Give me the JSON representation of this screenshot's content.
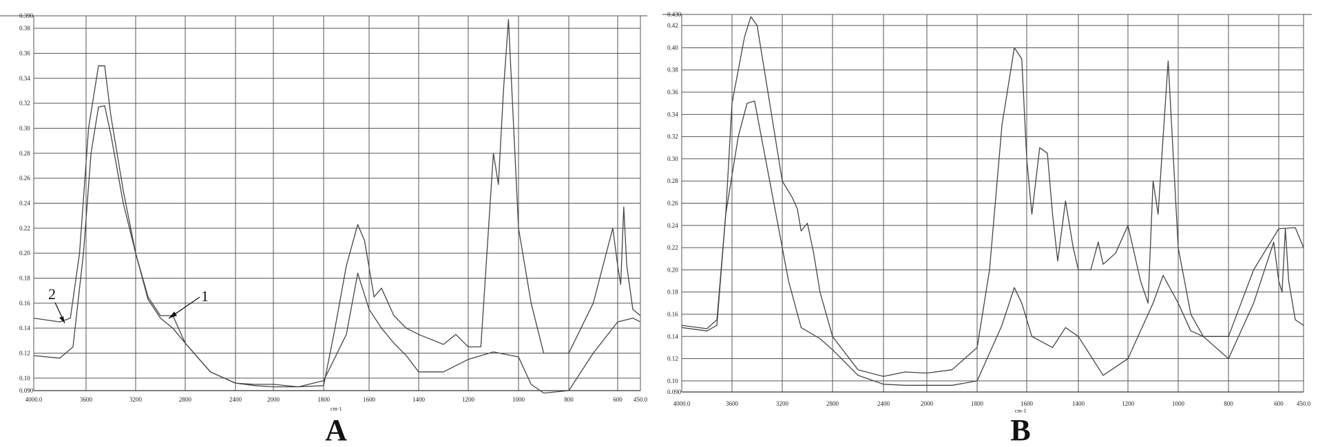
{
  "chart_data": [
    {
      "type": "line",
      "panel_label": "A",
      "x_unit": "cm-1",
      "xlim": [
        4000,
        450
      ],
      "ylim": [
        0.09,
        0.39
      ],
      "grid": true,
      "x_ticks": [
        "4000.0",
        "3600",
        "3200",
        "2800",
        "2400",
        "2000",
        "1800",
        "1600",
        "1400",
        "1200",
        "1000",
        "800",
        "600",
        "450.0"
      ],
      "y_ticks": [
        "0.390",
        "0.38",
        "0.36",
        "0.34",
        "0.32",
        "0.30",
        "0.28",
        "0.26",
        "0.24",
        "0.22",
        "0.20",
        "0.18",
        "0.16",
        "0.14",
        "0.12",
        "0.10",
        "0.090"
      ],
      "annotations": [
        "1",
        "2"
      ],
      "series": [
        {
          "label": "1",
          "points": [
            [
              4000,
              0.118
            ],
            [
              3800,
              0.116
            ],
            [
              3700,
              0.125
            ],
            [
              3620,
              0.2
            ],
            [
              3560,
              0.28
            ],
            [
              3500,
              0.317
            ],
            [
              3450,
              0.318
            ],
            [
              3400,
              0.295
            ],
            [
              3300,
              0.24
            ],
            [
              3200,
              0.2
            ],
            [
              3100,
              0.165
            ],
            [
              3000,
              0.15
            ],
            [
              2900,
              0.15
            ],
            [
              2800,
              0.128
            ],
            [
              2600,
              0.105
            ],
            [
              2400,
              0.096
            ],
            [
              2200,
              0.094
            ],
            [
              2000,
              0.093
            ],
            [
              1900,
              0.093
            ],
            [
              1800,
              0.098
            ],
            [
              1700,
              0.135
            ],
            [
              1650,
              0.184
            ],
            [
              1600,
              0.155
            ],
            [
              1550,
              0.14
            ],
            [
              1500,
              0.128
            ],
            [
              1450,
              0.118
            ],
            [
              1400,
              0.105
            ],
            [
              1300,
              0.105
            ],
            [
              1200,
              0.115
            ],
            [
              1100,
              0.121
            ],
            [
              1000,
              0.117
            ],
            [
              950,
              0.095
            ],
            [
              900,
              0.088
            ],
            [
              800,
              0.09
            ],
            [
              700,
              0.12
            ],
            [
              600,
              0.145
            ],
            [
              500,
              0.148
            ],
            [
              450,
              0.145
            ]
          ]
        },
        {
          "label": "2",
          "points": [
            [
              4000,
              0.148
            ],
            [
              3800,
              0.145
            ],
            [
              3720,
              0.148
            ],
            [
              3650,
              0.2
            ],
            [
              3580,
              0.3
            ],
            [
              3500,
              0.35
            ],
            [
              3450,
              0.35
            ],
            [
              3400,
              0.31
            ],
            [
              3300,
              0.25
            ],
            [
              3200,
              0.2
            ],
            [
              3100,
              0.163
            ],
            [
              3000,
              0.148
            ],
            [
              2900,
              0.14
            ],
            [
              2800,
              0.128
            ],
            [
              2600,
              0.105
            ],
            [
              2400,
              0.096
            ],
            [
              2200,
              0.095
            ],
            [
              2000,
              0.095
            ],
            [
              1900,
              0.093
            ],
            [
              1800,
              0.094
            ],
            [
              1750,
              0.14
            ],
            [
              1700,
              0.19
            ],
            [
              1650,
              0.223
            ],
            [
              1620,
              0.21
            ],
            [
              1580,
              0.165
            ],
            [
              1550,
              0.172
            ],
            [
              1500,
              0.15
            ],
            [
              1450,
              0.14
            ],
            [
              1400,
              0.135
            ],
            [
              1300,
              0.127
            ],
            [
              1250,
              0.135
            ],
            [
              1200,
              0.125
            ],
            [
              1150,
              0.125
            ],
            [
              1100,
              0.28
            ],
            [
              1080,
              0.255
            ],
            [
              1060,
              0.33
            ],
            [
              1040,
              0.387
            ],
            [
              1000,
              0.22
            ],
            [
              950,
              0.16
            ],
            [
              900,
              0.12
            ],
            [
              800,
              0.12
            ],
            [
              700,
              0.16
            ],
            [
              620,
              0.22
            ],
            [
              600,
              0.19
            ],
            [
              580,
              0.175
            ],
            [
              560,
              0.237
            ],
            [
              540,
              0.19
            ],
            [
              500,
              0.155
            ],
            [
              450,
              0.15
            ]
          ]
        }
      ]
    },
    {
      "type": "line",
      "panel_label": "B",
      "x_unit": "cm-1",
      "xlim": [
        4000,
        450
      ],
      "ylim": [
        0.09,
        0.43
      ],
      "grid": true,
      "x_ticks": [
        "4000.0",
        "3600",
        "3200",
        "2800",
        "2400",
        "2000",
        "1800",
        "1600",
        "1400",
        "1200",
        "1000",
        "800",
        "600",
        "450.0"
      ],
      "y_ticks": [
        "0.430",
        "0.42",
        "0.40",
        "0.38",
        "0.36",
        "0.34",
        "0.32",
        "0.30",
        "0.28",
        "0.26",
        "0.24",
        "0.22",
        "0.20",
        "0.18",
        "0.16",
        "0.14",
        "0.12",
        "0.10",
        "0.090"
      ],
      "series": [
        {
          "points": [
            [
              4000,
              0.148
            ],
            [
              3800,
              0.145
            ],
            [
              3720,
              0.15
            ],
            [
              3650,
              0.25
            ],
            [
              3600,
              0.35
            ],
            [
              3500,
              0.41
            ],
            [
              3450,
              0.428
            ],
            [
              3400,
              0.42
            ],
            [
              3300,
              0.35
            ],
            [
              3200,
              0.28
            ],
            [
              3120,
              0.265
            ],
            [
              3080,
              0.255
            ],
            [
              3050,
              0.235
            ],
            [
              3000,
              0.242
            ],
            [
              2950,
              0.215
            ],
            [
              2900,
              0.18
            ],
            [
              2800,
              0.14
            ],
            [
              2600,
              0.11
            ],
            [
              2400,
              0.104
            ],
            [
              2200,
              0.108
            ],
            [
              2000,
              0.107
            ],
            [
              1900,
              0.11
            ],
            [
              1800,
              0.13
            ],
            [
              1750,
              0.2
            ],
            [
              1700,
              0.33
            ],
            [
              1650,
              0.4
            ],
            [
              1620,
              0.39
            ],
            [
              1600,
              0.3
            ],
            [
              1580,
              0.25
            ],
            [
              1550,
              0.31
            ],
            [
              1520,
              0.305
            ],
            [
              1500,
              0.25
            ],
            [
              1480,
              0.208
            ],
            [
              1450,
              0.262
            ],
            [
              1420,
              0.22
            ],
            [
              1400,
              0.2
            ],
            [
              1350,
              0.2
            ],
            [
              1320,
              0.225
            ],
            [
              1300,
              0.205
            ],
            [
              1250,
              0.215
            ],
            [
              1200,
              0.24
            ],
            [
              1150,
              0.19
            ],
            [
              1120,
              0.17
            ],
            [
              1100,
              0.28
            ],
            [
              1080,
              0.25
            ],
            [
              1060,
              0.32
            ],
            [
              1040,
              0.388
            ],
            [
              1000,
              0.22
            ],
            [
              950,
              0.16
            ],
            [
              900,
              0.14
            ],
            [
              800,
              0.12
            ],
            [
              700,
              0.17
            ],
            [
              620,
              0.225
            ],
            [
              600,
              0.19
            ],
            [
              580,
              0.18
            ],
            [
              560,
              0.237
            ],
            [
              540,
              0.19
            ],
            [
              500,
              0.155
            ],
            [
              450,
              0.15
            ]
          ]
        },
        {
          "points": [
            [
              4000,
              0.15
            ],
            [
              3800,
              0.147
            ],
            [
              3720,
              0.155
            ],
            [
              3650,
              0.25
            ],
            [
              3550,
              0.32
            ],
            [
              3480,
              0.35
            ],
            [
              3420,
              0.352
            ],
            [
              3350,
              0.31
            ],
            [
              3250,
              0.25
            ],
            [
              3150,
              0.19
            ],
            [
              3050,
              0.148
            ],
            [
              2900,
              0.138
            ],
            [
              2800,
              0.128
            ],
            [
              2600,
              0.105
            ],
            [
              2400,
              0.097
            ],
            [
              2200,
              0.096
            ],
            [
              2000,
              0.096
            ],
            [
              1900,
              0.096
            ],
            [
              1800,
              0.1
            ],
            [
              1700,
              0.15
            ],
            [
              1650,
              0.184
            ],
            [
              1620,
              0.17
            ],
            [
              1580,
              0.14
            ],
            [
              1500,
              0.13
            ],
            [
              1450,
              0.148
            ],
            [
              1400,
              0.14
            ],
            [
              1300,
              0.105
            ],
            [
              1200,
              0.12
            ],
            [
              1100,
              0.17
            ],
            [
              1060,
              0.195
            ],
            [
              1000,
              0.17
            ],
            [
              950,
              0.145
            ],
            [
              900,
              0.14
            ],
            [
              800,
              0.14
            ],
            [
              700,
              0.2
            ],
            [
              600,
              0.237
            ],
            [
              500,
              0.238
            ],
            [
              450,
              0.22
            ]
          ]
        }
      ]
    }
  ]
}
